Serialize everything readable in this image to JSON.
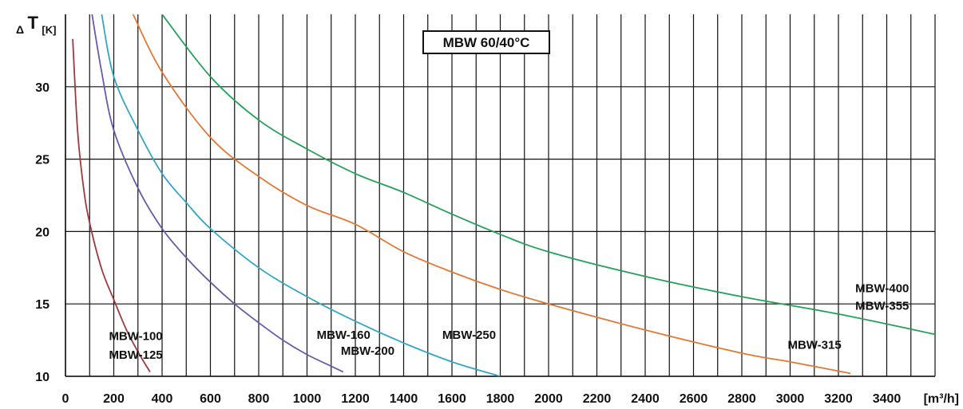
{
  "chart_data": {
    "type": "line",
    "title": "MBW 60/40°C",
    "ylabel": {
      "delta": "Δ",
      "symbol": "T",
      "unit": "[K]"
    },
    "xlabel": "[m³/h]",
    "xlim": [
      0,
      3600
    ],
    "ylim": [
      10,
      35
    ],
    "grid": true,
    "x_ticks": [
      0,
      200,
      400,
      600,
      800,
      1000,
      1200,
      1400,
      1600,
      1800,
      2000,
      2200,
      2400,
      2600,
      2800,
      3000,
      3200,
      3400
    ],
    "y_ticks": [
      10,
      15,
      20,
      25,
      30
    ],
    "colors": {
      "maroon": "#a0393d",
      "purple": "#6a5aa8",
      "teal": "#32a6c4",
      "orange": "#e07a35",
      "green": "#25a05a"
    },
    "series": [
      {
        "color_key": "maroon",
        "points": [
          [
            30,
            33.3
          ],
          [
            50,
            27
          ],
          [
            75,
            23
          ],
          [
            100,
            20.6
          ],
          [
            150,
            17.4
          ],
          [
            200,
            15.3
          ],
          [
            250,
            13.3
          ],
          [
            300,
            11.7
          ],
          [
            350,
            10.3
          ]
        ]
      },
      {
        "color_key": "purple",
        "points": [
          [
            110,
            35
          ],
          [
            150,
            31
          ],
          [
            200,
            27
          ],
          [
            300,
            23
          ],
          [
            400,
            20.2
          ],
          [
            500,
            18.2
          ],
          [
            600,
            16.5
          ],
          [
            700,
            15
          ],
          [
            800,
            13.7
          ],
          [
            900,
            12.5
          ],
          [
            1000,
            11.5
          ],
          [
            1100,
            10.7
          ],
          [
            1150,
            10.3
          ]
        ]
      },
      {
        "color_key": "teal",
        "points": [
          [
            150,
            35
          ],
          [
            200,
            30.7
          ],
          [
            300,
            27
          ],
          [
            400,
            24
          ],
          [
            500,
            22
          ],
          [
            600,
            20.2
          ],
          [
            800,
            17.5
          ],
          [
            1000,
            15.5
          ],
          [
            1200,
            13.8
          ],
          [
            1400,
            12.3
          ],
          [
            1600,
            11
          ],
          [
            1800,
            10
          ]
        ]
      },
      {
        "color_key": "orange",
        "points": [
          [
            280,
            35
          ],
          [
            400,
            31
          ],
          [
            600,
            26.5
          ],
          [
            800,
            23.8
          ],
          [
            1000,
            21.8
          ],
          [
            1200,
            20.5
          ],
          [
            1400,
            18.6
          ],
          [
            1600,
            17.2
          ],
          [
            1800,
            16
          ],
          [
            2000,
            15
          ],
          [
            2400,
            13.2
          ],
          [
            2800,
            11.6
          ],
          [
            3000,
            11
          ],
          [
            3250,
            10.2
          ]
        ]
      },
      {
        "color_key": "green",
        "points": [
          [
            400,
            35
          ],
          [
            600,
            30.7
          ],
          [
            800,
            27.7
          ],
          [
            1000,
            25.7
          ],
          [
            1200,
            24
          ],
          [
            1400,
            22.7
          ],
          [
            1600,
            21.2
          ],
          [
            1800,
            19.8
          ],
          [
            2000,
            18.6
          ],
          [
            2400,
            16.9
          ],
          [
            2800,
            15.5
          ],
          [
            3200,
            14.3
          ],
          [
            3600,
            12.9
          ]
        ]
      }
    ],
    "curve_labels": [
      {
        "text": "MBW-100",
        "x": 180,
        "y": 12.5
      },
      {
        "text": "MBW-125",
        "x": 180,
        "y": 11.2
      },
      {
        "text": "MBW-160",
        "x": 1040,
        "y": 12.6
      },
      {
        "text": "MBW-200",
        "x": 1140,
        "y": 11.5
      },
      {
        "text": "MBW-250",
        "x": 1560,
        "y": 12.6
      },
      {
        "text": "MBW-315",
        "x": 2990,
        "y": 11.9
      },
      {
        "text": "MBW-400",
        "x": 3270,
        "y": 15.8
      },
      {
        "text": "MBW-355",
        "x": 3270,
        "y": 14.6
      }
    ]
  }
}
